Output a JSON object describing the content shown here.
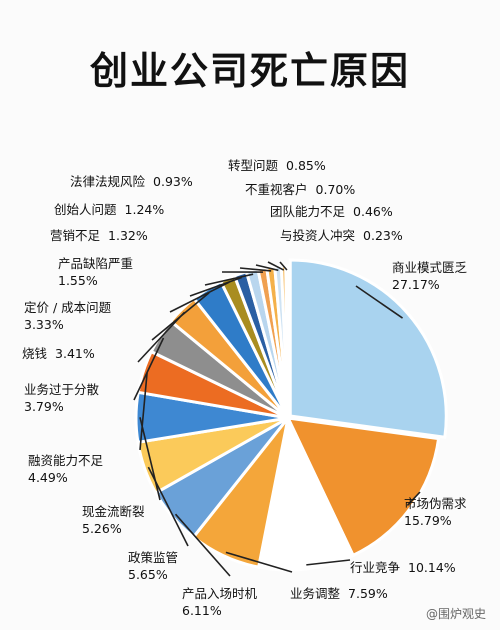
{
  "chart_data": {
    "type": "pie",
    "title": "创业公司死亡原因",
    "slices": [
      {
        "label": "商业模式匮乏",
        "value": 27.17,
        "value_text": "27.17%",
        "color": "#a9d3ef"
      },
      {
        "label": "市场伪需求",
        "value": 15.79,
        "value_text": "15.79%",
        "color": "#f0922e"
      },
      {
        "label": "行业竞争",
        "value": 10.14,
        "value_text": "10.14%",
        "color": "#ffffff"
      },
      {
        "label": "业务调整",
        "value": 7.59,
        "value_text": "7.59%",
        "color": "#f4a63a"
      },
      {
        "label": "产品入场时机",
        "value": 6.11,
        "value_text": "6.11%",
        "color": "#6aa1d8"
      },
      {
        "label": "政策监管",
        "value": 5.65,
        "value_text": "5.65%",
        "color": "#fbca5a"
      },
      {
        "label": "现金流断裂",
        "value": 5.26,
        "value_text": "5.26%",
        "color": "#3e88d2"
      },
      {
        "label": "融资能力不足",
        "value": 4.49,
        "value_text": "4.49%",
        "color": "#ec6c22"
      },
      {
        "label": "业务过于分散",
        "value": 3.79,
        "value_text": "3.79%",
        "color": "#8e8e8e"
      },
      {
        "label": "烧钱",
        "value": 3.41,
        "value_text": "3.41%",
        "color": "#f3a03a"
      },
      {
        "label": "定价 / 成本问题",
        "value": 3.33,
        "value_text": "3.33%",
        "color": "#2f7cc8"
      },
      {
        "label": "产品缺陷严重",
        "value": 1.55,
        "value_text": "1.55%",
        "color": "#a98d20"
      },
      {
        "label": "营销不足",
        "value": 1.32,
        "value_text": "1.32%",
        "color": "#2a5fa3"
      },
      {
        "label": "创始人问题",
        "value": 1.24,
        "value_text": "1.24%",
        "color": "#b9d6ee"
      },
      {
        "label": "法律法规风险",
        "value": 0.93,
        "value_text": "0.93%",
        "color": "#f0a050"
      },
      {
        "label": "转型问题",
        "value": 0.85,
        "value_text": "0.85%",
        "color": "#f4b14a"
      },
      {
        "label": "不重视客户",
        "value": 0.7,
        "value_text": "0.70%",
        "color": "#cfe3f3"
      },
      {
        "label": "团队能力不足",
        "value": 0.46,
        "value_text": "0.46%",
        "color": "#f7bf6a"
      },
      {
        "label": "与投资人冲突",
        "value": 0.23,
        "value_text": "0.23%",
        "color": "#8fbfe5"
      }
    ]
  },
  "watermark": "@围炉观史"
}
